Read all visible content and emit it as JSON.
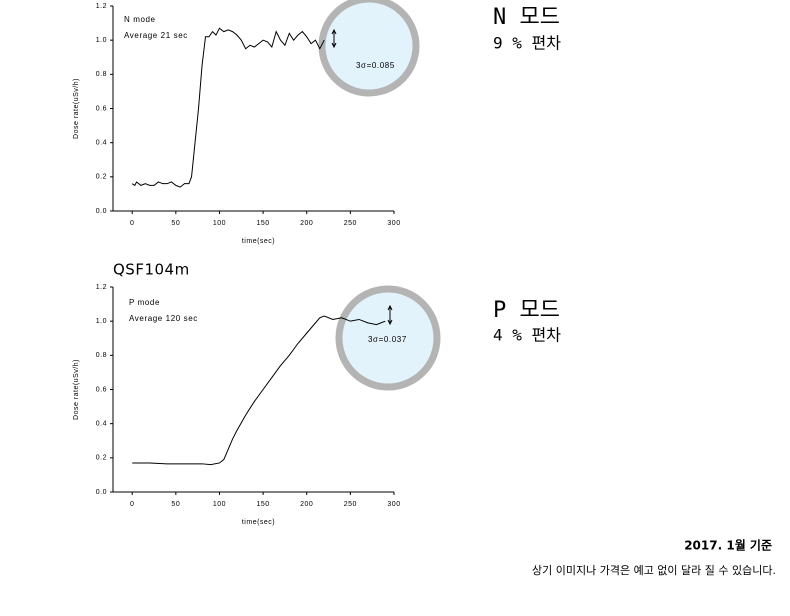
{
  "chart_data": [
    {
      "type": "line",
      "color": "#000000",
      "x": [
        0,
        3,
        5,
        10,
        15,
        20,
        25,
        30,
        35,
        40,
        45,
        50,
        55,
        60,
        65,
        68,
        72,
        76,
        80,
        84,
        88,
        92,
        96,
        100,
        105,
        110,
        115,
        120,
        125,
        130,
        135,
        140,
        145,
        150,
        155,
        160,
        165,
        170,
        175,
        180,
        185,
        190,
        195,
        200,
        205,
        210,
        215,
        220
      ],
      "values": [
        0.16,
        0.15,
        0.17,
        0.15,
        0.16,
        0.15,
        0.15,
        0.17,
        0.16,
        0.16,
        0.17,
        0.15,
        0.14,
        0.16,
        0.16,
        0.2,
        0.4,
        0.6,
        0.85,
        1.02,
        1.02,
        1.05,
        1.03,
        1.07,
        1.05,
        1.06,
        1.05,
        1.03,
        1.0,
        0.95,
        0.97,
        0.96,
        0.98,
        1.0,
        0.99,
        0.96,
        1.05,
        1.0,
        0.97,
        1.04,
        1.0,
        1.03,
        1.05,
        1.02,
        0.98,
        1.0,
        0.95,
        1.0
      ],
      "xlim": [
        -22,
        300
      ],
      "ylim": [
        0,
        1.2
      ],
      "xticks": [
        0,
        50,
        100,
        150,
        200,
        250,
        300
      ],
      "yticks": [
        {
          "value": 0,
          "label": "0.0"
        },
        0.2,
        0.4,
        0.6,
        0.8,
        {
          "value": 1,
          "label": "1.0"
        },
        1.2
      ],
      "xlabel": "time(sec)",
      "ylabel": "Dose rate(uSv/h)",
      "annotations": [
        "N mode",
        "Average 21 sec",
        "3σ=0.085"
      ]
    },
    {
      "type": "line",
      "color": "#000000",
      "title": "QSF104m",
      "x": [
        0,
        20,
        40,
        60,
        80,
        90,
        100,
        105,
        110,
        115,
        120,
        130,
        140,
        150,
        160,
        170,
        180,
        190,
        200,
        210,
        215,
        220,
        230,
        240,
        250,
        260,
        270,
        280,
        290
      ],
      "values": [
        0.17,
        0.17,
        0.165,
        0.165,
        0.165,
        0.16,
        0.17,
        0.19,
        0.25,
        0.31,
        0.36,
        0.45,
        0.53,
        0.6,
        0.67,
        0.74,
        0.8,
        0.87,
        0.93,
        0.99,
        1.02,
        1.03,
        1.01,
        1.02,
        1.0,
        1.01,
        0.99,
        0.98,
        1.0
      ],
      "xlim": [
        -22,
        300
      ],
      "ylim": [
        0,
        1.2
      ],
      "xticks": [
        0,
        50,
        100,
        150,
        200,
        250,
        300
      ],
      "yticks": [
        {
          "value": 0,
          "label": "0.0"
        },
        0.2,
        0.4,
        0.6,
        0.8,
        {
          "value": 1,
          "label": "1.0"
        },
        1.2
      ],
      "xlabel": "time(sec)",
      "ylabel": "Dose rate(uSv/h)",
      "annotations": [
        "P mode",
        "Average 120 sec",
        "3σ=0.037"
      ]
    }
  ],
  "side_notes": [
    {
      "title": "N 모드",
      "deviation": "9 % 편차"
    },
    {
      "title": "P 모드",
      "deviation": "4 % 편차"
    }
  ],
  "footer": {
    "date": "2017. 1월 기준",
    "disclaimer": "상기 이미지나 가격은 예고 없이 달라 질 수 있습니다."
  }
}
